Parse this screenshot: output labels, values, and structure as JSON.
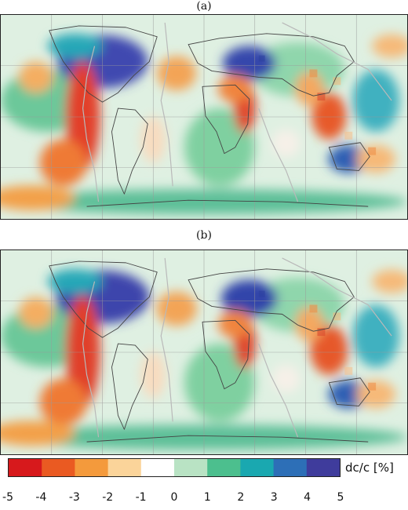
{
  "panels": [
    {
      "label": "(a)"
    },
    {
      "label": "(b)"
    }
  ],
  "colorbar": {
    "label": "dc/c [%]",
    "min": -5,
    "max": 5,
    "ticks": [
      "-5",
      "-4",
      "-3",
      "-2",
      "-1",
      "0",
      "1",
      "2",
      "3",
      "4",
      "5"
    ],
    "colors": [
      "#d7191c",
      "#ea5a22",
      "#f49a3c",
      "#fbd49a",
      "#ffffff",
      "#b9e3c4",
      "#4cbf8e",
      "#1aa8b0",
      "#2d6fb7",
      "#3f3c9c"
    ]
  }
}
